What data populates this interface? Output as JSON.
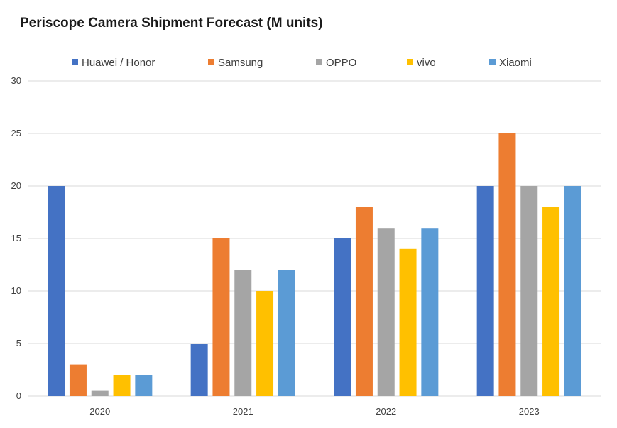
{
  "chart_data": {
    "type": "bar",
    "title": "Periscope Camera Shipment Forecast (M units)",
    "xlabel": "",
    "ylabel": "",
    "categories": [
      "2020",
      "2021",
      "2022",
      "2023"
    ],
    "ylim": [
      0,
      30
    ],
    "yticks": [
      "0",
      "5",
      "10",
      "15",
      "20",
      "25",
      "30"
    ],
    "grid": "horizontal",
    "legend_position": "top",
    "series": [
      {
        "name": "Huawei / Honor",
        "color": "#4472C4",
        "values": [
          20,
          5,
          15,
          20
        ]
      },
      {
        "name": "Samsung",
        "color": "#ED7D31",
        "values": [
          3,
          15,
          18,
          25
        ]
      },
      {
        "name": "OPPO",
        "color": "#A5A5A5",
        "values": [
          0.5,
          12,
          16,
          20
        ]
      },
      {
        "name": "vivo",
        "color": "#FFC000",
        "values": [
          2,
          10,
          14,
          18
        ]
      },
      {
        "name": "Xiaomi",
        "color": "#5B9BD5",
        "values": [
          2,
          12,
          16,
          20
        ]
      }
    ]
  }
}
